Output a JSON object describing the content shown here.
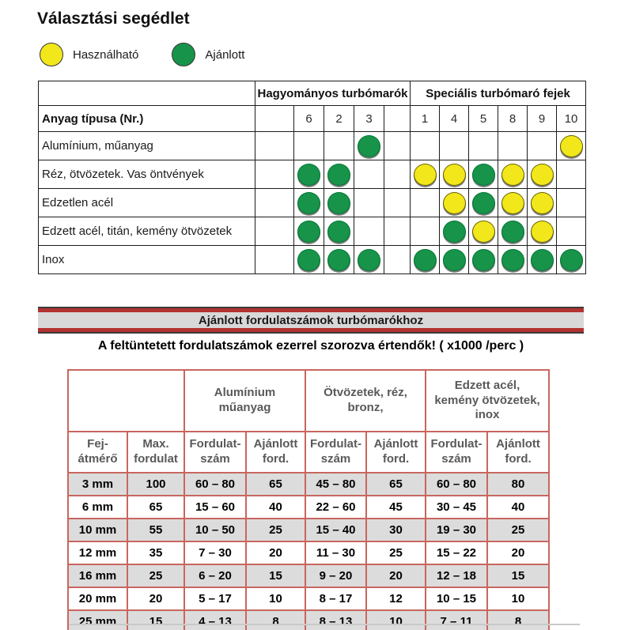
{
  "title": "Választási segédlet",
  "legend": {
    "usable": {
      "label": "Használható"
    },
    "recommended": {
      "label": "Ajánlott"
    }
  },
  "selection_matrix": {
    "group1_header": "Hagyományos turbómarók",
    "group2_header": "Speciális turbómaró fejek",
    "row_header": "Anyag típusa (Nr.)",
    "group1_columns": [
      "6",
      "2",
      "3"
    ],
    "group2_columns": [
      "1",
      "4",
      "5",
      "8",
      "9",
      "10"
    ],
    "column_order": [
      "6",
      "2",
      "3",
      "1",
      "4",
      "5",
      "8",
      "9",
      "10"
    ],
    "dot_meaning": {
      "green": "Ajánlott",
      "yellow": "Használható"
    },
    "rows": [
      {
        "label": "Alumínium, műanyag",
        "dots": {
          "3": "green",
          "10": "yellow"
        }
      },
      {
        "label": "Réz, ötvözetek. Vas öntvények",
        "dots": {
          "6": "green",
          "2": "green",
          "1": "yellow",
          "4": "yellow",
          "5": "green",
          "8": "yellow",
          "9": "yellow"
        }
      },
      {
        "label": "Edzetlen acél",
        "dots": {
          "6": "green",
          "2": "green",
          "4": "yellow",
          "5": "green",
          "8": "yellow",
          "9": "yellow"
        }
      },
      {
        "label": "Edzett acél, titán, kemény ötvözetek",
        "dots": {
          "6": "green",
          "2": "green",
          "4": "green",
          "5": "yellow",
          "8": "green",
          "9": "yellow"
        }
      },
      {
        "label": "Inox",
        "dots": {
          "6": "green",
          "2": "green",
          "3": "green",
          "1": "green",
          "4": "green",
          "5": "green",
          "8": "green",
          "9": "green",
          "10": "green"
        }
      }
    ]
  },
  "speed_section": {
    "banner_title": "Ajánlott fordulatszámok turbómarókhoz",
    "note": "A feltüntetett fordulatszámok ezerrel szorozva értendők! ( x1000 /perc )",
    "table": {
      "material_groups": [
        "Alumínium\nműanyag",
        "Ötvözetek, réz,\nbronz,",
        "Edzett acél,\nkemény ötvözetek,\ninox"
      ],
      "column_headers": [
        "Fej-\nátmérő",
        "Max.\nfordulat",
        "Fordulat-\nszám",
        "Ajánlott\nford.",
        "Fordulat-\nszám",
        "Ajánlott\nford.",
        "Fordulat-\nszám",
        "Ajánlott\nford."
      ],
      "rows": [
        [
          "3 mm",
          "100",
          "60 – 80",
          "65",
          "45 – 80",
          "65",
          "60 – 80",
          "80"
        ],
        [
          "6 mm",
          "65",
          "15 – 60",
          "40",
          "22 – 60",
          "45",
          "30 – 45",
          "40"
        ],
        [
          "10 mm",
          "55",
          "10 – 50",
          "25",
          "15 – 40",
          "30",
          "19 – 30",
          "25"
        ],
        [
          "12 mm",
          "35",
          "7 – 30",
          "20",
          "11 – 30",
          "25",
          "15 – 22",
          "20"
        ],
        [
          "16 mm",
          "25",
          "6 – 20",
          "15",
          "9 – 20",
          "20",
          "12 – 18",
          "15"
        ],
        [
          "20 mm",
          "20",
          "5 – 17",
          "10",
          "8 – 17",
          "12",
          "10 – 15",
          "10"
        ],
        [
          "25 mm",
          "15",
          "4 – 13",
          "8",
          "8 – 13",
          "10",
          "7 – 11",
          "8"
        ]
      ]
    }
  },
  "colors": {
    "dot_green": "#17944a",
    "dot_yellow": "#f2e71a",
    "banner_red": "#b23230",
    "banner_gray": "#d8d8d8",
    "table2_border": "#c9665f",
    "row_gray": "#dcdcdc",
    "header_text_gray": "#595959"
  }
}
